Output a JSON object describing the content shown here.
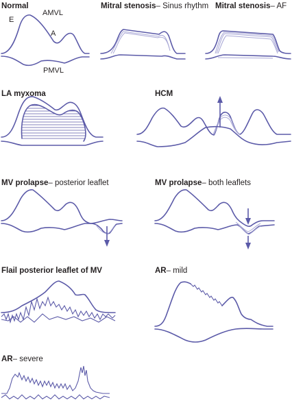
{
  "colors": {
    "trace": "#5b5aa8",
    "trace_faint": "#a9a8d6",
    "text": "#231f20"
  },
  "panels": {
    "normal": {
      "title": "Normal",
      "label_e": "E",
      "label_a": "A",
      "label_amvl": "AMVL",
      "label_pmvl": "PMVL"
    },
    "ms_sinus": {
      "title": "Mitral stenosis",
      "subtitle": "– Sinus rhythm"
    },
    "ms_af": {
      "title": "Mitral stenosis",
      "subtitle": "– AF"
    },
    "la_myxoma": {
      "title": "LA myxoma"
    },
    "hcm": {
      "title": "HCM"
    },
    "mvp_posterior": {
      "title": "MV prolapse",
      "subtitle": "– posterior leaflet"
    },
    "mvp_both": {
      "title": "MV prolapse",
      "subtitle": "– both leaflets"
    },
    "flail": {
      "title": "Flail posterior leaflet of MV"
    },
    "ar_mild": {
      "title": "AR",
      "subtitle": "– mild"
    },
    "ar_severe": {
      "title": "AR",
      "subtitle": "– severe"
    }
  }
}
